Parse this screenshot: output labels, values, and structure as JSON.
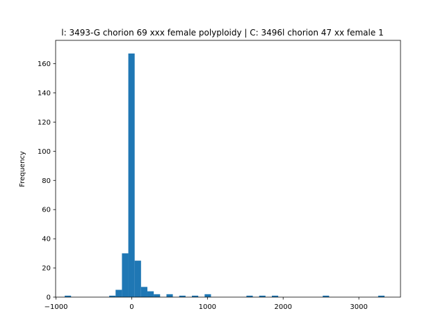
{
  "chart_data": {
    "type": "bar",
    "title": "l: 3493-G chorion 69 xxx female polyploidy | C: 3496l chorion 47 xx female 1",
    "xlabel": "",
    "ylabel": "Frequency",
    "xlim": [
      -1005,
      3550
    ],
    "ylim": [
      0,
      176
    ],
    "xticks": [
      -1000,
      0,
      1000,
      2000,
      3000
    ],
    "xtick_labels": [
      "−1000",
      "0",
      "1000",
      "2000",
      "3000"
    ],
    "yticks": [
      0,
      20,
      40,
      60,
      80,
      100,
      120,
      140,
      160
    ],
    "ytick_labels": [
      "0",
      "20",
      "40",
      "60",
      "80",
      "100",
      "120",
      "140",
      "160"
    ],
    "grid": false,
    "color": "#1f77b4",
    "bin_width": 84,
    "bins": [
      {
        "x0": -885,
        "count": 1
      },
      {
        "x0": -297,
        "count": 1
      },
      {
        "x0": -213,
        "count": 5
      },
      {
        "x0": -129,
        "count": 30
      },
      {
        "x0": -45,
        "count": 167
      },
      {
        "x0": 39,
        "count": 25
      },
      {
        "x0": 123,
        "count": 7
      },
      {
        "x0": 207,
        "count": 4
      },
      {
        "x0": 291,
        "count": 2
      },
      {
        "x0": 459,
        "count": 2
      },
      {
        "x0": 627,
        "count": 1
      },
      {
        "x0": 795,
        "count": 1
      },
      {
        "x0": 963,
        "count": 2
      },
      {
        "x0": 1515,
        "count": 1
      },
      {
        "x0": 1683,
        "count": 1
      },
      {
        "x0": 1851,
        "count": 1
      },
      {
        "x0": 2523,
        "count": 1
      },
      {
        "x0": 3255,
        "count": 1
      }
    ]
  }
}
